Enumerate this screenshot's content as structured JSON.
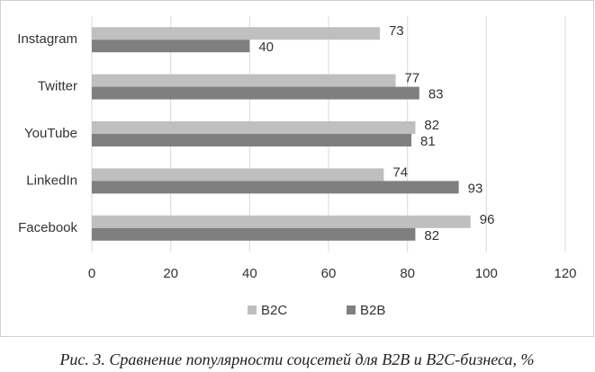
{
  "chart_data": {
    "type": "hbar",
    "categories": [
      "Instagram",
      "Twitter",
      "YouTube",
      "LinkedIn",
      "Facebook"
    ],
    "series": [
      {
        "name": "B2C",
        "color": "#bfbfbf",
        "values": [
          73,
          77,
          82,
          74,
          96
        ]
      },
      {
        "name": "B2B",
        "color": "#7f7f7f",
        "values": [
          40,
          83,
          81,
          93,
          82
        ]
      }
    ],
    "xlim": [
      0,
      120
    ],
    "xticks": [
      0,
      20,
      40,
      60,
      80,
      100,
      120
    ],
    "grid": true,
    "legend": "bottom",
    "caption": "Рис. 3. Сравнение популярности соцсетей для B2B и B2C-бизнеса, %"
  }
}
